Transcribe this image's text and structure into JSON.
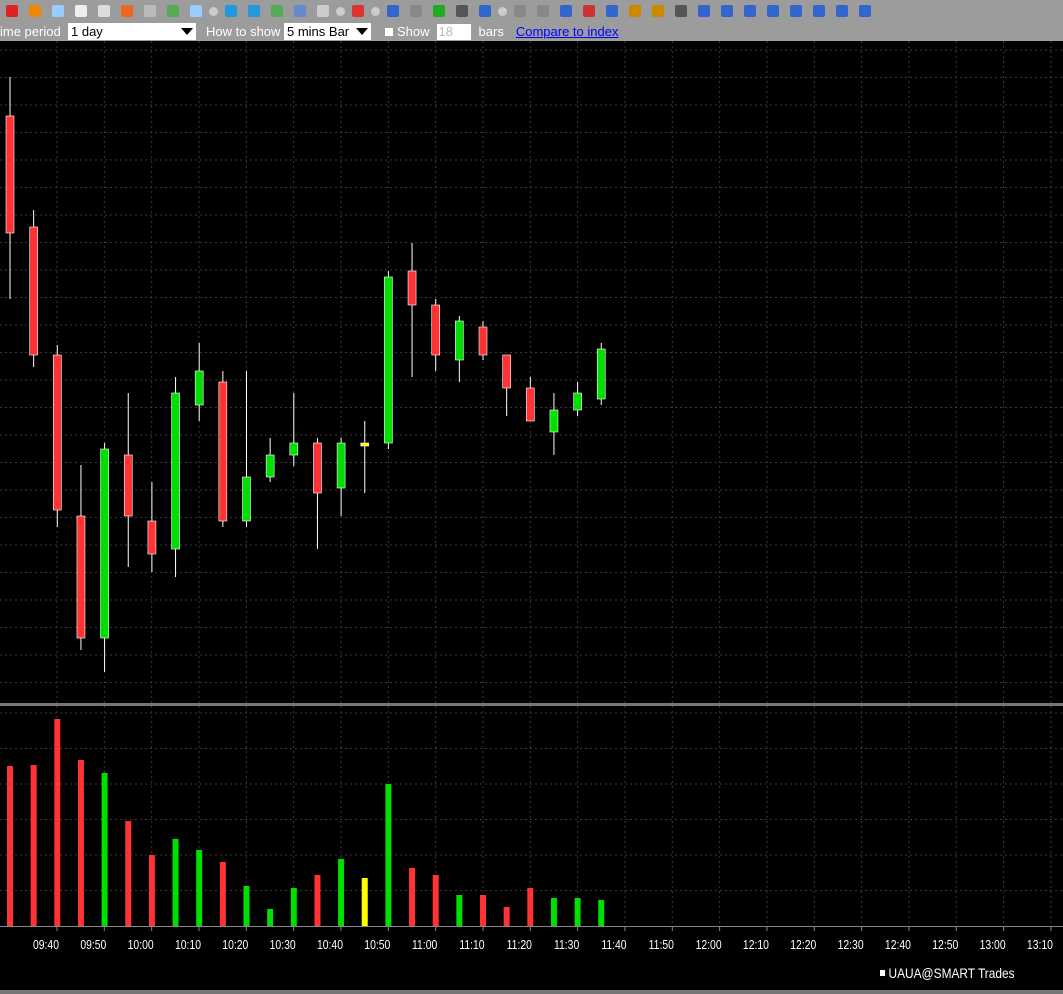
{
  "toolbar": {
    "icons": [
      "crosshair-select-icon",
      "pointer-icon",
      "clock-icon",
      "grid-icon",
      "print-icon",
      "refresh-clock-icon",
      "globe-icon",
      "add-indicator-icon",
      "zoom-icon",
      "dropdown-icon",
      "text-icon",
      "text-remove-icon",
      "add-study-icon",
      "line-chart-icon",
      "layout-icon",
      "dropdown-icon",
      "pencil-icon",
      "dropdown-icon",
      "bar-chart-icon",
      "bar-chart-gray-icon",
      "dollar-icon",
      "crosshair-icon",
      "trendline-icon",
      "dropdown-icon",
      "undo-icon",
      "redo-icon",
      "channel-icon",
      "fib-icon",
      "pitchfork-icon",
      "magnify-plus-icon",
      "magnify-minus-icon",
      "fit-icon",
      "vertical-expand-icon",
      "vertical-shrink-icon",
      "scroll-left-icon",
      "scroll-start-icon",
      "scroll-right-icon",
      "scroll-end-icon",
      "center-icon",
      "sync-icon"
    ]
  },
  "settings": {
    "time_period_label": "ime period",
    "time_period_value": "1 day",
    "how_to_show_label": "How to show",
    "how_to_show_value": "5 mins Bar",
    "show_label": "Show",
    "show_bars_value": "18",
    "bars_label": "bars",
    "compare_link": "Compare to index"
  },
  "colors": {
    "up": "#00e000",
    "down": "#ff3333",
    "neutral": "#ffff00",
    "grid": "#3a3a3a",
    "toolbar": "#9c9c9c"
  },
  "chart_data": {
    "type": "candlestick",
    "note_price_units": "relative (no price axis shown)",
    "x_tick_labels": [
      "09:40",
      "09:50",
      "10:00",
      "10:10",
      "10:20",
      "10:30",
      "10:40",
      "10:50",
      "11:00",
      "11:10",
      "11:20",
      "11:30",
      "11:40",
      "11:50",
      "12:00",
      "12:10",
      "12:20",
      "12:30",
      "12:40",
      "12:50",
      "13:00",
      "13:10"
    ],
    "candles": [
      {
        "o": 58.4,
        "h": 62.3,
        "l": 40.1,
        "c": 46.7,
        "dir": "down"
      },
      {
        "o": 47.3,
        "h": 49.0,
        "l": 33.3,
        "c": 34.5,
        "dir": "down"
      },
      {
        "o": 34.5,
        "h": 35.5,
        "l": 17.3,
        "c": 19.0,
        "dir": "down"
      },
      {
        "o": 18.4,
        "h": 23.5,
        "l": 5.0,
        "c": 6.2,
        "dir": "down"
      },
      {
        "o": 6.2,
        "h": 25.7,
        "l": 2.8,
        "c": 25.1,
        "dir": "up"
      },
      {
        "o": 24.5,
        "h": 30.7,
        "l": 13.3,
        "c": 18.4,
        "dir": "down"
      },
      {
        "o": 17.9,
        "h": 21.8,
        "l": 12.8,
        "c": 14.6,
        "dir": "down"
      },
      {
        "o": 15.1,
        "h": 32.3,
        "l": 12.3,
        "c": 30.7,
        "dir": "up"
      },
      {
        "o": 29.5,
        "h": 35.7,
        "l": 27.9,
        "c": 32.9,
        "dir": "up"
      },
      {
        "o": 31.8,
        "h": 32.9,
        "l": 17.3,
        "c": 17.9,
        "dir": "down"
      },
      {
        "o": 17.9,
        "h": 32.9,
        "l": 17.3,
        "c": 22.3,
        "dir": "up"
      },
      {
        "o": 22.3,
        "h": 26.2,
        "l": 21.8,
        "c": 24.5,
        "dir": "up"
      },
      {
        "o": 24.5,
        "h": 30.7,
        "l": 23.4,
        "c": 25.7,
        "dir": "up"
      },
      {
        "o": 25.7,
        "h": 26.2,
        "l": 15.1,
        "c": 20.7,
        "dir": "down"
      },
      {
        "o": 21.2,
        "h": 26.2,
        "l": 18.4,
        "c": 25.7,
        "dir": "up"
      },
      {
        "o": 25.7,
        "h": 27.9,
        "l": 20.7,
        "c": 25.4,
        "dir": "flat"
      },
      {
        "o": 25.7,
        "h": 42.9,
        "l": 25.1,
        "c": 42.3,
        "dir": "up"
      },
      {
        "o": 42.9,
        "h": 45.7,
        "l": 32.3,
        "c": 39.5,
        "dir": "down"
      },
      {
        "o": 39.5,
        "h": 40.1,
        "l": 32.9,
        "c": 34.5,
        "dir": "down"
      },
      {
        "o": 34.0,
        "h": 38.4,
        "l": 31.8,
        "c": 37.9,
        "dir": "up"
      },
      {
        "o": 37.3,
        "h": 37.9,
        "l": 34.0,
        "c": 34.5,
        "dir": "down"
      },
      {
        "o": 34.5,
        "h": 34.5,
        "l": 28.4,
        "c": 31.2,
        "dir": "down"
      },
      {
        "o": 31.2,
        "h": 32.3,
        "l": 27.9,
        "c": 27.9,
        "dir": "down"
      },
      {
        "o": 26.8,
        "h": 30.7,
        "l": 24.5,
        "c": 29.0,
        "dir": "up"
      },
      {
        "o": 29.0,
        "h": 31.8,
        "l": 28.4,
        "c": 30.7,
        "dir": "up"
      },
      {
        "o": 30.1,
        "h": 35.7,
        "l": 29.5,
        "c": 35.1,
        "dir": "up"
      }
    ],
    "volume": [
      160,
      161,
      207,
      166,
      153,
      105,
      71,
      87,
      76,
      64,
      40,
      17,
      38,
      51,
      67,
      48,
      142,
      58,
      51,
      31,
      31,
      19,
      38,
      28,
      28,
      26
    ],
    "legend": "UAUA@SMART Trades"
  }
}
